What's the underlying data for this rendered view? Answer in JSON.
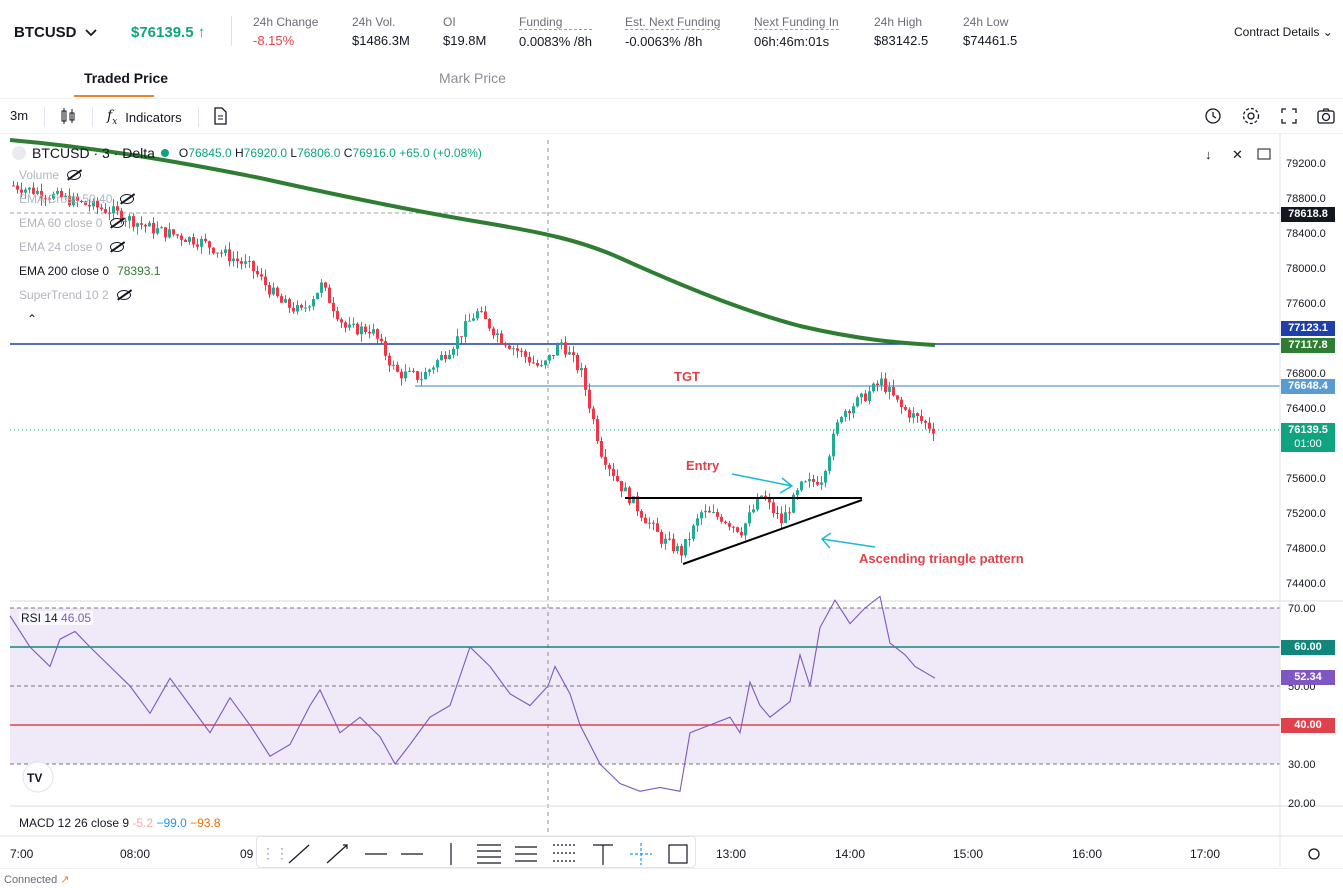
{
  "header": {
    "symbol": "BTCUSD",
    "last_price": "$76139.5",
    "stats": [
      {
        "label": "24h Change",
        "value": "-8.15%",
        "negative": true
      },
      {
        "label": "24h Vol.",
        "value": "$1486.3M"
      },
      {
        "label": "OI",
        "value": "$19.8M"
      },
      {
        "label": "Funding",
        "value": "0.0083% /8h"
      },
      {
        "label": "Est. Next Funding",
        "value": "-0.0063% /8h"
      },
      {
        "label": "Next Funding In",
        "value": "06h:46m:01s"
      },
      {
        "label": "24h High",
        "value": "$83142.5"
      },
      {
        "label": "24h Low",
        "value": "$74461.5"
      }
    ],
    "contract_details": "Contract Details"
  },
  "tabs": {
    "traded": "Traded Price",
    "mark": "Mark Price"
  },
  "toolbar": {
    "interval": "3m",
    "indicators": "Indicators"
  },
  "legend": {
    "title": "BTCUSD · 3 · Delta",
    "o": "76845.0",
    "h": "76920.0",
    "l": "76806.0",
    "c": "76916.0",
    "change": "+65.0 (+0.08%)",
    "indicators": [
      {
        "name": "Volume",
        "value": "",
        "visible": false
      },
      {
        "name": "EMA Cross 50 40",
        "value": "",
        "visible": false
      },
      {
        "name": "EMA 60 close 0",
        "value": "",
        "visible": false
      },
      {
        "name": "EMA 24 close 0",
        "value": "",
        "visible": false
      },
      {
        "name": "EMA 200 close 0",
        "value": "78393.1",
        "visible": true
      },
      {
        "name": "SuperTrend 10 2",
        "value": "",
        "visible": false
      }
    ]
  },
  "rsi": {
    "name": "RSI 14",
    "value": "46.05"
  },
  "macd": {
    "name": "MACD 12 26 close 9",
    "v1": "-5.2",
    "v2": "−99.0",
    "v3": "−93.8"
  },
  "annotations": {
    "tgt": "TGT",
    "entry": "Entry",
    "pattern": "Ascending triangle pattern"
  },
  "price_axis": {
    "ticks": [
      "79200.0",
      "78800.0",
      "78400.0",
      "78000.0",
      "77600.0",
      "76800.0",
      "76400.0",
      "75600.0",
      "75200.0",
      "74800.0",
      "74400.0"
    ],
    "boxes": [
      {
        "label": "78618.8",
        "color": "#131722"
      },
      {
        "label": "77123.1",
        "color": "#1e3fa8"
      },
      {
        "label": "77117.8",
        "color": "#2e7d32"
      },
      {
        "label": "76648.4",
        "color": "#5b9bd5"
      },
      {
        "label": "76139.5",
        "color": "#10a37f"
      },
      {
        "label": "01:00",
        "color": "#10a37f"
      }
    ]
  },
  "rsi_axis": {
    "ticks": [
      "70.00",
      "30.00",
      "20.00"
    ],
    "hidden_tick": "50.00",
    "boxes": [
      {
        "label": "60.00",
        "color": "#10877a"
      },
      {
        "label": "52.34",
        "color": "#7e57c2"
      },
      {
        "label": "40.00",
        "color": "#e0424c"
      }
    ]
  },
  "time_axis": [
    "7:00",
    "08:00",
    "09",
    "13:00",
    "14:00",
    "15:00",
    "16:00",
    "17:00"
  ],
  "status": {
    "connected": "Connected"
  },
  "chart_data": {
    "type": "candlestick",
    "interval": "3m",
    "ylim": [
      74200,
      79400
    ],
    "ema200_end": 77117.8,
    "levels": {
      "resistance": 77117.8,
      "target": 76648.4,
      "last": 76139.5
    },
    "rsi_levels": [
      70,
      60,
      50,
      40,
      30
    ],
    "rsi_last": 52.34
  }
}
